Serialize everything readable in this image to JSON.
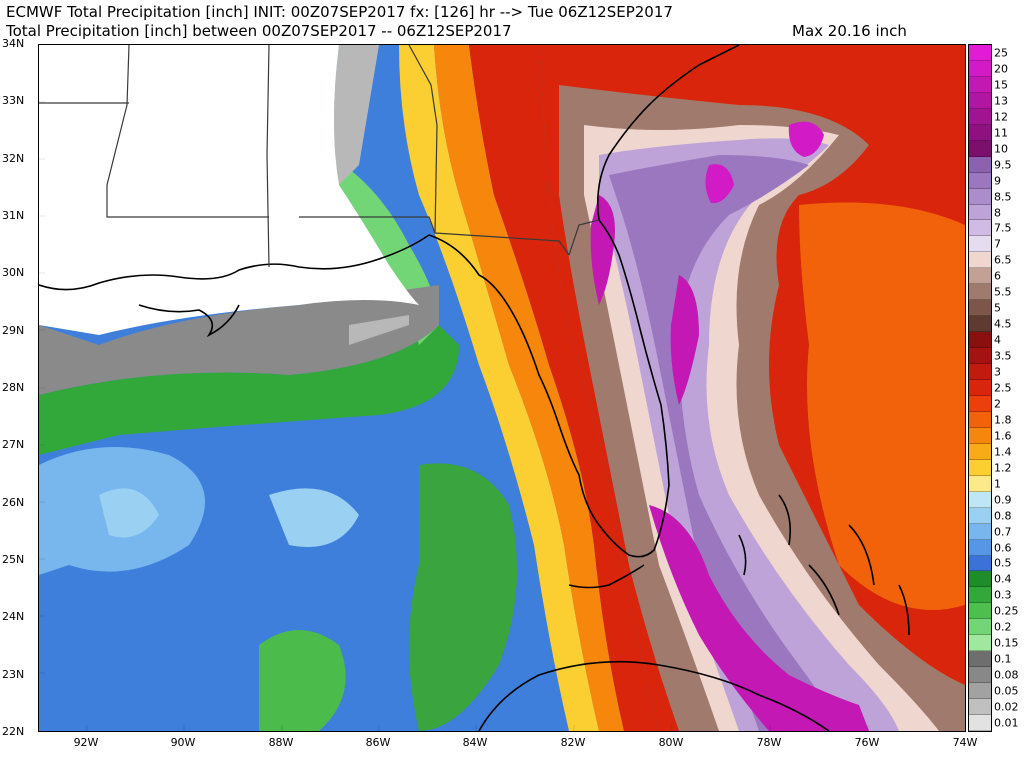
{
  "header": {
    "line1": "ECMWF Total Precipitation [inch] INIT: 00Z07SEP2017 fx: [126] hr --> Tue 06Z12SEP2017",
    "line2": "Total Precipitation [inch] between 00Z07SEP2017 -- 06Z12SEP2017",
    "max": "Max 20.16 inch"
  },
  "lat_labels": [
    "34N",
    "33N",
    "32N",
    "31N",
    "30N",
    "29N",
    "28N",
    "27N",
    "26N",
    "25N",
    "24N",
    "23N",
    "22N"
  ],
  "lon_labels": [
    "92W",
    "90W",
    "88W",
    "86W",
    "84W",
    "82W",
    "80W",
    "78W",
    "76W",
    "74W"
  ],
  "legend": {
    "labels": [
      "25",
      "20",
      "15",
      "13",
      "12",
      "11",
      "10",
      "9.5",
      "9",
      "8.5",
      "8",
      "7.5",
      "7",
      "6.5",
      "6",
      "5.5",
      "5",
      "4.5",
      "4",
      "3.5",
      "3",
      "2.5",
      "2",
      "1.8",
      "1.6",
      "1.4",
      "1.2",
      "1",
      "0.9",
      "0.8",
      "0.7",
      "0.6",
      "0.5",
      "0.4",
      "0.3",
      "0.25",
      "0.2",
      "0.15",
      "0.1",
      "0.08",
      "0.05",
      "0.02",
      "0.01"
    ],
    "colors": [
      "#e21bd6",
      "#d21ac6",
      "#c318b4",
      "#b016a2",
      "#a11491",
      "#8f1180",
      "#7a0f6c",
      "#8a62b0",
      "#9b77bf",
      "#ac8dcb",
      "#bda3d7",
      "#cfbbe3",
      "#e6dcef",
      "#efd7cf",
      "#c2a093",
      "#a07a6c",
      "#7e5649",
      "#5f3a30",
      "#8a0f0f",
      "#a41212",
      "#c11a0f",
      "#d8250b",
      "#ec3f0a",
      "#f2620a",
      "#f7860c",
      "#f9aa17",
      "#fbce32",
      "#fce98a",
      "#bfe6f5",
      "#9ad0f2",
      "#78b6ee",
      "#5696e6",
      "#3a72d8",
      "#1f8c2a",
      "#32a83b",
      "#4dbf4f",
      "#73d676",
      "#a1e89f",
      "#6e6e6e",
      "#888888",
      "#a2a2a2",
      "#c0c0c0",
      "#e2e2e2"
    ]
  },
  "map": {
    "background": "#3d7fdb",
    "regions": [
      {
        "name": "gulf-light-blue-a",
        "color": "#78b6ee"
      },
      {
        "name": "gulf-light-blue-b",
        "color": "#9ad0f2"
      },
      {
        "name": "gulf-green-band",
        "color": "#32a83b"
      },
      {
        "name": "gulf-light-green",
        "color": "#73d676"
      },
      {
        "name": "gulf-green-patch-a",
        "color": "#3aa43f"
      },
      {
        "name": "gulf-green-patch-b",
        "color": "#4bbb4c"
      },
      {
        "name": "gray-gulf-coast",
        "color": "#8a8a8a"
      },
      {
        "name": "gray-light-coast",
        "color": "#b8b8b8"
      },
      {
        "name": "land-white",
        "color": "#ffffff"
      },
      {
        "name": "yellow-band",
        "color": "#fbce32"
      },
      {
        "name": "orange-band",
        "color": "#f7860c"
      },
      {
        "name": "red-band",
        "color": "#d8250b"
      },
      {
        "name": "atlantic-red",
        "color": "#d8250b"
      },
      {
        "name": "atlantic-orange",
        "color": "#f2620a"
      },
      {
        "name": "brown-band",
        "color": "#a07a6c"
      },
      {
        "name": "pink-band",
        "color": "#efd7cf"
      },
      {
        "name": "lavender-band",
        "color": "#bda3d7"
      },
      {
        "name": "purple-core",
        "color": "#9b77bf"
      },
      {
        "name": "magenta-core",
        "color": "#c318b4"
      },
      {
        "name": "magenta-spot-north",
        "color": "#d21ac6"
      }
    ],
    "coastline_color": "#000000",
    "border_color": "#3a3a3a"
  }
}
